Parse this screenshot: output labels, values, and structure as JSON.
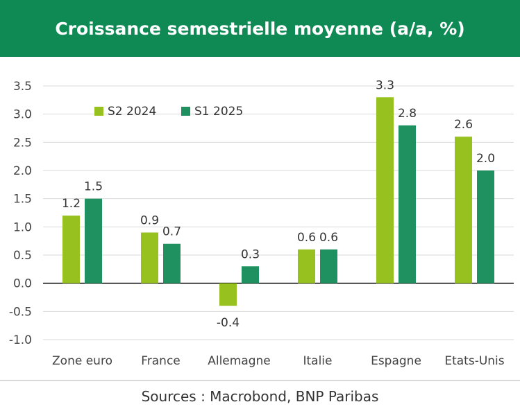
{
  "header": {
    "title": "Croissance semestrielle moyenne (a/a, %)"
  },
  "footer": {
    "source": "Sources : Macrobond, BNP Paribas"
  },
  "colors": {
    "header_bg": "#0f8a55",
    "series1": "#97c11f",
    "series2": "#1f9160",
    "grid": "#d9d9d9",
    "axis": "#000000"
  },
  "chart_data": {
    "type": "bar",
    "title": "",
    "xlabel": "",
    "ylabel": "",
    "ylim": [
      -1.0,
      3.5
    ],
    "yticks": [
      "3.5",
      "3.0",
      "2.5",
      "2.0",
      "1.5",
      "1.0",
      "0.5",
      "0.0",
      "-0.5",
      "-1.0"
    ],
    "grid": true,
    "legend_position": "top-left",
    "categories": [
      "Zone euro",
      "France",
      "Allemagne",
      "Italie",
      "Espagne",
      "Etats-Unis"
    ],
    "series": [
      {
        "name": "S2 2024",
        "values": [
          1.2,
          0.9,
          -0.4,
          0.6,
          3.3,
          2.6
        ],
        "labels": [
          "1.2",
          "0.9",
          "-0.4",
          "0.6",
          "3.3",
          "2.6"
        ]
      },
      {
        "name": "S1 2025",
        "values": [
          1.5,
          0.7,
          0.3,
          0.6,
          2.8,
          2.0
        ],
        "labels": [
          "1.5",
          "0.7",
          "0.3",
          "0.6",
          "2.8",
          "2.0"
        ]
      }
    ]
  }
}
